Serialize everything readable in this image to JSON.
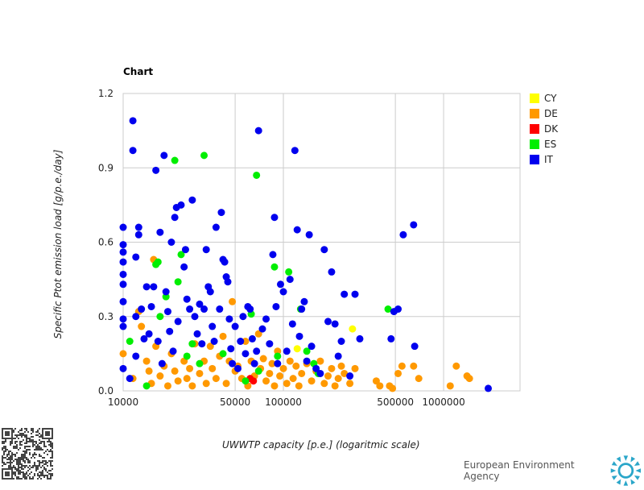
{
  "chart_data": {
    "type": "scatter",
    "title": "Chart",
    "xlabel": "UWWTP capacity [p.e.] (logaritmic scale)",
    "ylabel": "Specific Ptot emission load [g/p.e./day]",
    "xscale": "log",
    "xlim": [
      10000,
      3000000
    ],
    "ylim": [
      0,
      1.2
    ],
    "xticks": [
      {
        "value": 10000,
        "label": "10000"
      },
      {
        "value": 50000,
        "label": "50000"
      },
      {
        "value": 100000,
        "label": "100000"
      },
      {
        "value": 500000,
        "label": "500000"
      },
      {
        "value": 1000000,
        "label": "1000000"
      }
    ],
    "yticks": [
      {
        "value": 0,
        "label": "0.0"
      },
      {
        "value": 0.3,
        "label": "0.3"
      },
      {
        "value": 0.6,
        "label": "0.6"
      },
      {
        "value": 0.9,
        "label": "0.9"
      },
      {
        "value": 1.2,
        "label": "1.2"
      }
    ],
    "grid": true,
    "legend_position": "right-top",
    "series": [
      {
        "name": "CY",
        "color": "#ffff00",
        "points": [
          [
            122000,
            0.17
          ],
          [
            270000,
            0.25
          ]
        ]
      },
      {
        "name": "DE",
        "color": "#ff9900",
        "points": [
          [
            10000,
            0.15
          ],
          [
            11500,
            0.05
          ],
          [
            12500,
            0.32
          ],
          [
            13000,
            0.26
          ],
          [
            14000,
            0.12
          ],
          [
            14500,
            0.08
          ],
          [
            15000,
            0.03
          ],
          [
            15500,
            0.53
          ],
          [
            16000,
            0.18
          ],
          [
            17000,
            0.06
          ],
          [
            18000,
            0.1
          ],
          [
            19000,
            0.02
          ],
          [
            20000,
            0.15
          ],
          [
            21000,
            0.08
          ],
          [
            22000,
            0.04
          ],
          [
            24000,
            0.12
          ],
          [
            25000,
            0.05
          ],
          [
            26000,
            0.09
          ],
          [
            27000,
            0.02
          ],
          [
            28000,
            0.19
          ],
          [
            30000,
            0.07
          ],
          [
            32000,
            0.12
          ],
          [
            33000,
            0.03
          ],
          [
            35000,
            0.18
          ],
          [
            36000,
            0.09
          ],
          [
            38000,
            0.05
          ],
          [
            40000,
            0.14
          ],
          [
            42000,
            0.22
          ],
          [
            44000,
            0.03
          ],
          [
            46000,
            0.12
          ],
          [
            48000,
            0.36
          ],
          [
            50000,
            0.08
          ],
          [
            52000,
            0.1
          ],
          [
            55000,
            0.05
          ],
          [
            58000,
            0.2
          ],
          [
            60000,
            0.02
          ],
          [
            63000,
            0.12
          ],
          [
            66000,
            0.06
          ],
          [
            70000,
            0.23
          ],
          [
            72000,
            0.09
          ],
          [
            75000,
            0.13
          ],
          [
            78000,
            0.04
          ],
          [
            82000,
            0.07
          ],
          [
            85000,
            0.11
          ],
          [
            88000,
            0.02
          ],
          [
            92000,
            0.16
          ],
          [
            95000,
            0.06
          ],
          [
            100000,
            0.09
          ],
          [
            105000,
            0.03
          ],
          [
            110000,
            0.12
          ],
          [
            115000,
            0.05
          ],
          [
            120000,
            0.1
          ],
          [
            125000,
            0.02
          ],
          [
            130000,
            0.07
          ],
          [
            140000,
            0.11
          ],
          [
            150000,
            0.04
          ],
          [
            160000,
            0.08
          ],
          [
            170000,
            0.12
          ],
          [
            180000,
            0.03
          ],
          [
            190000,
            0.06
          ],
          [
            200000,
            0.09
          ],
          [
            210000,
            0.02
          ],
          [
            220000,
            0.05
          ],
          [
            230000,
            0.1
          ],
          [
            240000,
            0.07
          ],
          [
            260000,
            0.03
          ],
          [
            280000,
            0.09
          ],
          [
            380000,
            0.04
          ],
          [
            400000,
            0.02
          ],
          [
            460000,
            0.02
          ],
          [
            480000,
            0.01
          ],
          [
            520000,
            0.07
          ],
          [
            550000,
            0.1
          ],
          [
            650000,
            0.1
          ],
          [
            700000,
            0.05
          ],
          [
            1100000,
            0.02
          ],
          [
            1200000,
            0.1
          ],
          [
            1400000,
            0.06
          ],
          [
            1450000,
            0.05
          ]
        ]
      },
      {
        "name": "DK",
        "color": "#ff0000",
        "points": [
          [
            62000,
            0.05
          ],
          [
            65000,
            0.04
          ]
        ]
      },
      {
        "name": "ES",
        "color": "#00ee00",
        "points": [
          [
            11000,
            0.2
          ],
          [
            14000,
            0.02
          ],
          [
            16000,
            0.51
          ],
          [
            16500,
            0.52
          ],
          [
            17000,
            0.3
          ],
          [
            18500,
            0.38
          ],
          [
            21000,
            0.93
          ],
          [
            22000,
            0.44
          ],
          [
            23000,
            0.55
          ],
          [
            25000,
            0.14
          ],
          [
            27000,
            0.19
          ],
          [
            30000,
            0.11
          ],
          [
            32000,
            0.95
          ],
          [
            42000,
            0.15
          ],
          [
            58000,
            0.04
          ],
          [
            63000,
            0.31
          ],
          [
            68000,
            0.87
          ],
          [
            70000,
            0.08
          ],
          [
            88000,
            0.5
          ],
          [
            92000,
            0.14
          ],
          [
            108000,
            0.48
          ],
          [
            128000,
            0.33
          ],
          [
            140000,
            0.16
          ],
          [
            155000,
            0.11
          ],
          [
            165000,
            0.07
          ],
          [
            450000,
            0.33
          ]
        ]
      },
      {
        "name": "IT",
        "color": "#0000ee",
        "points": [
          [
            10000,
            0.66
          ],
          [
            10000,
            0.59
          ],
          [
            10000,
            0.56
          ],
          [
            10000,
            0.52
          ],
          [
            10000,
            0.47
          ],
          [
            10000,
            0.43
          ],
          [
            10000,
            0.36
          ],
          [
            10000,
            0.29
          ],
          [
            10000,
            0.26
          ],
          [
            10000,
            0.09
          ],
          [
            11000,
            0.05
          ],
          [
            11500,
            0.97
          ],
          [
            11500,
            1.09
          ],
          [
            12000,
            0.54
          ],
          [
            12000,
            0.3
          ],
          [
            12000,
            0.14
          ],
          [
            12500,
            0.66
          ],
          [
            12500,
            0.63
          ],
          [
            13000,
            0.33
          ],
          [
            13500,
            0.21
          ],
          [
            14000,
            0.42
          ],
          [
            14500,
            0.23
          ],
          [
            15000,
            0.34
          ],
          [
            15500,
            0.42
          ],
          [
            16000,
            0.89
          ],
          [
            16500,
            0.2
          ],
          [
            17000,
            0.64
          ],
          [
            17500,
            0.11
          ],
          [
            18000,
            0.95
          ],
          [
            18500,
            0.4
          ],
          [
            19000,
            0.32
          ],
          [
            19500,
            0.24
          ],
          [
            20000,
            0.6
          ],
          [
            20500,
            0.16
          ],
          [
            21000,
            0.7
          ],
          [
            21500,
            0.74
          ],
          [
            22000,
            0.28
          ],
          [
            23000,
            0.75
          ],
          [
            24000,
            0.5
          ],
          [
            24500,
            0.57
          ],
          [
            25000,
            0.37
          ],
          [
            26000,
            0.33
          ],
          [
            27000,
            0.77
          ],
          [
            28000,
            0.3
          ],
          [
            29000,
            0.23
          ],
          [
            30000,
            0.35
          ],
          [
            31000,
            0.19
          ],
          [
            32000,
            0.33
          ],
          [
            33000,
            0.57
          ],
          [
            34000,
            0.42
          ],
          [
            35000,
            0.4
          ],
          [
            36000,
            0.26
          ],
          [
            37000,
            0.2
          ],
          [
            38000,
            0.66
          ],
          [
            40000,
            0.33
          ],
          [
            41000,
            0.72
          ],
          [
            42000,
            0.53
          ],
          [
            43000,
            0.52
          ],
          [
            44000,
            0.46
          ],
          [
            45000,
            0.44
          ],
          [
            46000,
            0.29
          ],
          [
            47000,
            0.17
          ],
          [
            48000,
            0.11
          ],
          [
            50000,
            0.26
          ],
          [
            52000,
            0.09
          ],
          [
            54000,
            0.2
          ],
          [
            56000,
            0.3
          ],
          [
            58000,
            0.15
          ],
          [
            60000,
            0.34
          ],
          [
            62000,
            0.33
          ],
          [
            64000,
            0.21
          ],
          [
            66000,
            0.11
          ],
          [
            68000,
            0.16
          ],
          [
            70000,
            1.05
          ],
          [
            74000,
            0.25
          ],
          [
            78000,
            0.29
          ],
          [
            82000,
            0.19
          ],
          [
            86000,
            0.55
          ],
          [
            88000,
            0.7
          ],
          [
            90000,
            0.34
          ],
          [
            92000,
            0.11
          ],
          [
            96000,
            0.43
          ],
          [
            100000,
            0.4
          ],
          [
            105000,
            0.16
          ],
          [
            110000,
            0.45
          ],
          [
            114000,
            0.27
          ],
          [
            118000,
            0.97
          ],
          [
            122000,
            0.65
          ],
          [
            126000,
            0.22
          ],
          [
            130000,
            0.33
          ],
          [
            135000,
            0.36
          ],
          [
            140000,
            0.12
          ],
          [
            145000,
            0.63
          ],
          [
            150000,
            0.18
          ],
          [
            160000,
            0.09
          ],
          [
            170000,
            0.07
          ],
          [
            180000,
            0.57
          ],
          [
            190000,
            0.28
          ],
          [
            200000,
            0.48
          ],
          [
            210000,
            0.27
          ],
          [
            220000,
            0.14
          ],
          [
            230000,
            0.2
          ],
          [
            240000,
            0.39
          ],
          [
            260000,
            0.06
          ],
          [
            280000,
            0.39
          ],
          [
            300000,
            0.21
          ],
          [
            470000,
            0.21
          ],
          [
            490000,
            0.32
          ],
          [
            520000,
            0.33
          ],
          [
            560000,
            0.63
          ],
          [
            650000,
            0.67
          ],
          [
            660000,
            0.18
          ],
          [
            1900000,
            0.01
          ]
        ]
      }
    ]
  },
  "footer": {
    "org": "European Environment Agency"
  }
}
